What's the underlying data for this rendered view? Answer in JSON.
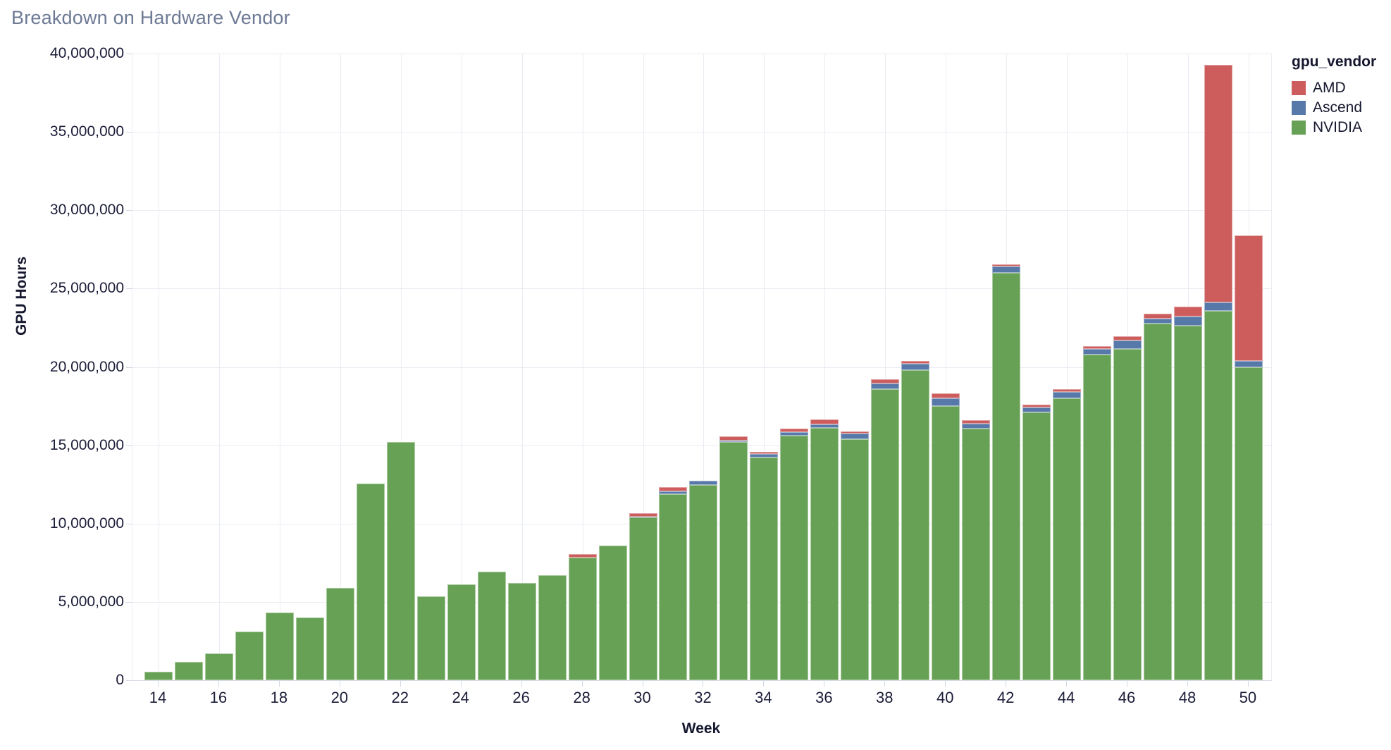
{
  "title": "Breakdown on Hardware Vendor",
  "axes": {
    "x_label": "Week",
    "y_label": "GPU Hours",
    "y_ticks": [
      {
        "value": 0,
        "label": "0"
      },
      {
        "value": 5000000,
        "label": "5,000,000"
      },
      {
        "value": 10000000,
        "label": "10,000,000"
      },
      {
        "value": 15000000,
        "label": "15,000,000"
      },
      {
        "value": 20000000,
        "label": "20,000,000"
      },
      {
        "value": 25000000,
        "label": "25,000,000"
      },
      {
        "value": 30000000,
        "label": "30,000,000"
      },
      {
        "value": 35000000,
        "label": "35,000,000"
      },
      {
        "value": 40000000,
        "label": "40,000,000"
      }
    ],
    "x_ticks": [
      {
        "value": 14,
        "label": "14"
      },
      {
        "value": 16,
        "label": "16"
      },
      {
        "value": 18,
        "label": "18"
      },
      {
        "value": 20,
        "label": "20"
      },
      {
        "value": 22,
        "label": "22"
      },
      {
        "value": 24,
        "label": "24"
      },
      {
        "value": 26,
        "label": "26"
      },
      {
        "value": 28,
        "label": "28"
      },
      {
        "value": 30,
        "label": "30"
      },
      {
        "value": 32,
        "label": "32"
      },
      {
        "value": 34,
        "label": "34"
      },
      {
        "value": 36,
        "label": "36"
      },
      {
        "value": 38,
        "label": "38"
      },
      {
        "value": 40,
        "label": "40"
      },
      {
        "value": 42,
        "label": "42"
      },
      {
        "value": 44,
        "label": "44"
      },
      {
        "value": 46,
        "label": "46"
      },
      {
        "value": 48,
        "label": "48"
      },
      {
        "value": 50,
        "label": "50"
      }
    ]
  },
  "legend": {
    "title": "gpu_vendor",
    "items": [
      {
        "label": "AMD",
        "color": "#cd5c5c"
      },
      {
        "label": "Ascend",
        "color": "#5779a9"
      },
      {
        "label": "NVIDIA",
        "color": "#67a155"
      }
    ]
  },
  "chart_data": {
    "type": "bar",
    "stacked": true,
    "title": "Breakdown on Hardware Vendor",
    "xlabel": "Week",
    "ylabel": "GPU Hours",
    "ylim": [
      0,
      40000000
    ],
    "grid": true,
    "legend_position": "top-right",
    "stack_order_bottom_to_top": [
      "NVIDIA",
      "Ascend",
      "AMD"
    ],
    "weeks": [
      14,
      15,
      16,
      17,
      18,
      19,
      20,
      21,
      22,
      23,
      24,
      25,
      26,
      27,
      28,
      29,
      30,
      31,
      32,
      33,
      34,
      35,
      36,
      37,
      38,
      39,
      40,
      41,
      42,
      43,
      44,
      45,
      46,
      47,
      48,
      49,
      50
    ],
    "series": [
      {
        "name": "NVIDIA",
        "color": "#67a155",
        "values": [
          550000,
          1150000,
          1720000,
          3100000,
          4320000,
          4000000,
          5900000,
          12550000,
          15200000,
          5350000,
          6100000,
          6950000,
          6200000,
          6700000,
          7850000,
          8600000,
          10400000,
          11900000,
          12450000,
          15200000,
          14200000,
          15600000,
          16100000,
          15400000,
          18600000,
          19800000,
          17500000,
          16050000,
          26000000,
          17100000,
          18000000,
          20800000,
          21150000,
          22750000,
          22650000,
          23600000,
          20000000
        ]
      },
      {
        "name": "Ascend",
        "color": "#5779a9",
        "values": [
          0,
          0,
          0,
          0,
          0,
          0,
          0,
          0,
          0,
          0,
          0,
          0,
          0,
          0,
          0,
          0,
          50000,
          150000,
          300000,
          120000,
          250000,
          220000,
          250000,
          350000,
          340000,
          400000,
          500000,
          350000,
          400000,
          300000,
          400000,
          350000,
          550000,
          350000,
          550000,
          500000,
          400000
        ]
      },
      {
        "name": "AMD",
        "color": "#cd5c5c",
        "values": [
          0,
          0,
          0,
          0,
          0,
          0,
          0,
          0,
          0,
          0,
          0,
          0,
          0,
          0,
          200000,
          0,
          200000,
          300000,
          0,
          230000,
          150000,
          230000,
          300000,
          150000,
          260000,
          200000,
          300000,
          200000,
          150000,
          200000,
          200000,
          200000,
          250000,
          300000,
          650000,
          15200000,
          8000000
        ]
      }
    ]
  }
}
